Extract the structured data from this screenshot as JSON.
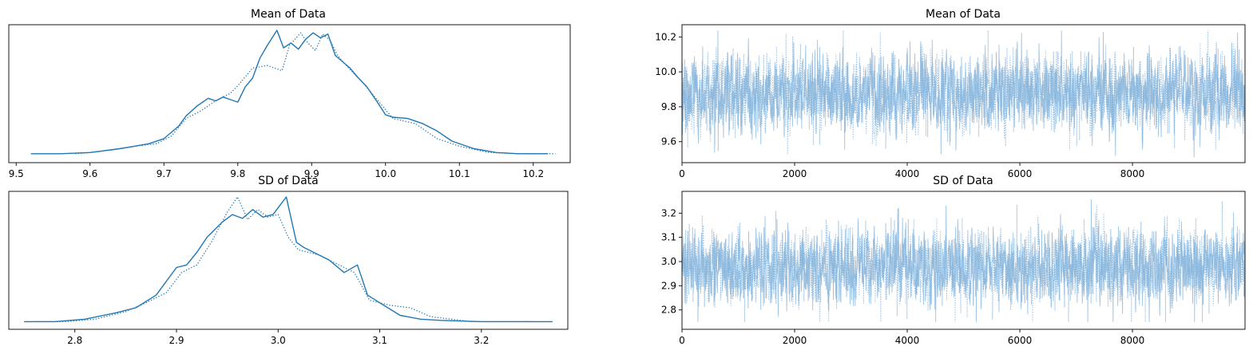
{
  "chart_data": [
    {
      "id": "kde_mean",
      "type": "line",
      "title": "Mean of Data",
      "xlabel": "",
      "ylabel": "",
      "xlim": [
        9.49,
        10.25
      ],
      "x_ticks": [
        9.5,
        9.6,
        9.7,
        9.8,
        9.9,
        10.0,
        10.1,
        10.2
      ],
      "x_tick_labels": [
        "9.5",
        "9.6",
        "9.7",
        "9.8",
        "9.9",
        "10.0",
        "10.1",
        "10.2"
      ],
      "y_ticks_shown": false,
      "color": "#1f77b4",
      "series": [
        {
          "style": "solid",
          "x": [
            9.52,
            9.56,
            9.6,
            9.64,
            9.66,
            9.68,
            9.7,
            9.72,
            9.73,
            9.745,
            9.76,
            9.77,
            9.78,
            9.79,
            9.8,
            9.81,
            9.82,
            9.83,
            9.84,
            9.853,
            9.862,
            9.872,
            9.882,
            9.892,
            9.902,
            9.912,
            9.922,
            9.932,
            9.942,
            9.952,
            9.962,
            9.975,
            9.99,
            10.0,
            10.01,
            10.03,
            10.05,
            10.07,
            10.09,
            10.12,
            10.15,
            10.18,
            10.22
          ],
          "y": [
            0.02,
            0.02,
            0.03,
            0.06,
            0.08,
            0.1,
            0.14,
            0.24,
            0.32,
            0.4,
            0.46,
            0.44,
            0.47,
            0.45,
            0.43,
            0.55,
            0.62,
            0.78,
            0.88,
            1.0,
            0.86,
            0.9,
            0.85,
            0.93,
            0.98,
            0.94,
            0.97,
            0.8,
            0.75,
            0.7,
            0.63,
            0.55,
            0.42,
            0.33,
            0.31,
            0.3,
            0.26,
            0.2,
            0.12,
            0.06,
            0.03,
            0.02,
            0.02
          ]
        },
        {
          "style": "dotted",
          "x": [
            9.58,
            9.6,
            9.63,
            9.66,
            9.69,
            9.71,
            9.73,
            9.75,
            9.77,
            9.79,
            9.8,
            9.82,
            9.84,
            9.86,
            9.87,
            9.885,
            9.895,
            9.905,
            9.915,
            9.925,
            9.935,
            9.95,
            9.97,
            9.99,
            10.01,
            10.04,
            10.07,
            10.1,
            10.14,
            10.18,
            10.23
          ],
          "y": [
            0.02,
            0.03,
            0.05,
            0.08,
            0.1,
            0.16,
            0.3,
            0.36,
            0.44,
            0.5,
            0.56,
            0.7,
            0.72,
            0.68,
            0.88,
            0.98,
            0.9,
            0.84,
            0.97,
            0.92,
            0.8,
            0.7,
            0.58,
            0.44,
            0.3,
            0.26,
            0.14,
            0.08,
            0.03,
            0.02,
            0.02
          ]
        }
      ]
    },
    {
      "id": "trace_mean",
      "type": "line",
      "title": "Mean of Data",
      "xlabel": "",
      "ylabel": "",
      "xlim": [
        0,
        9999
      ],
      "ylim": [
        9.48,
        10.27
      ],
      "x_ticks": [
        0,
        2000,
        4000,
        6000,
        8000
      ],
      "x_tick_labels": [
        "0",
        "2000",
        "4000",
        "6000",
        "8000"
      ],
      "y_ticks": [
        9.6,
        9.8,
        10.0,
        10.2
      ],
      "y_tick_labels": [
        "9.6",
        "9.8",
        "10.0",
        "10.2"
      ],
      "color": "#7fb0d9",
      "draws": 10000,
      "center": 9.88,
      "spread": 0.11,
      "min": 9.51,
      "max": 10.24
    },
    {
      "id": "kde_sd",
      "type": "line",
      "title": "SD of Data",
      "xlabel": "",
      "ylabel": "",
      "xlim": [
        2.735,
        3.285
      ],
      "x_ticks": [
        2.8,
        2.9,
        3.0,
        3.1,
        3.2
      ],
      "x_tick_labels": [
        "2.8",
        "2.9",
        "3.0",
        "3.1",
        "3.2"
      ],
      "y_ticks_shown": false,
      "color": "#1f77b4",
      "series": [
        {
          "style": "solid",
          "x": [
            2.75,
            2.78,
            2.81,
            2.84,
            2.86,
            2.88,
            2.9,
            2.91,
            2.92,
            2.93,
            2.945,
            2.955,
            2.965,
            2.975,
            2.985,
            2.995,
            3.008,
            3.018,
            3.025,
            3.035,
            3.05,
            3.065,
            3.078,
            3.088,
            3.1,
            3.12,
            3.14,
            3.16,
            3.2,
            3.27
          ],
          "y": [
            0.01,
            0.01,
            0.03,
            0.08,
            0.12,
            0.22,
            0.44,
            0.46,
            0.56,
            0.68,
            0.8,
            0.86,
            0.83,
            0.9,
            0.84,
            0.86,
            1.0,
            0.64,
            0.6,
            0.56,
            0.5,
            0.4,
            0.46,
            0.22,
            0.16,
            0.06,
            0.03,
            0.02,
            0.01,
            0.01
          ]
        },
        {
          "style": "dotted",
          "x": [
            2.76,
            2.79,
            2.82,
            2.85,
            2.87,
            2.89,
            2.905,
            2.92,
            2.935,
            2.95,
            2.96,
            2.97,
            2.98,
            2.99,
            3.0,
            3.01,
            3.02,
            3.04,
            3.06,
            3.075,
            3.09,
            3.11,
            3.13,
            3.15,
            3.19,
            3.25
          ],
          "y": [
            0.01,
            0.01,
            0.03,
            0.09,
            0.16,
            0.24,
            0.4,
            0.46,
            0.65,
            0.88,
            1.0,
            0.82,
            0.9,
            0.84,
            0.86,
            0.68,
            0.58,
            0.54,
            0.46,
            0.4,
            0.18,
            0.14,
            0.12,
            0.05,
            0.01,
            0.01
          ]
        }
      ]
    },
    {
      "id": "trace_sd",
      "type": "line",
      "title": "SD of Data",
      "xlabel": "",
      "ylabel": "",
      "xlim": [
        0,
        9999
      ],
      "ylim": [
        2.72,
        3.29
      ],
      "x_ticks": [
        0,
        2000,
        4000,
        6000,
        8000
      ],
      "x_tick_labels": [
        "0",
        "2000",
        "4000",
        "6000",
        "8000"
      ],
      "y_ticks": [
        2.8,
        2.9,
        3.0,
        3.1,
        3.2
      ],
      "y_tick_labels": [
        "2.8",
        "2.9",
        "3.0",
        "3.1",
        "3.2"
      ],
      "color": "#7fb0d9",
      "draws": 10000,
      "center": 2.98,
      "spread": 0.075,
      "min": 2.75,
      "max": 3.26
    }
  ]
}
